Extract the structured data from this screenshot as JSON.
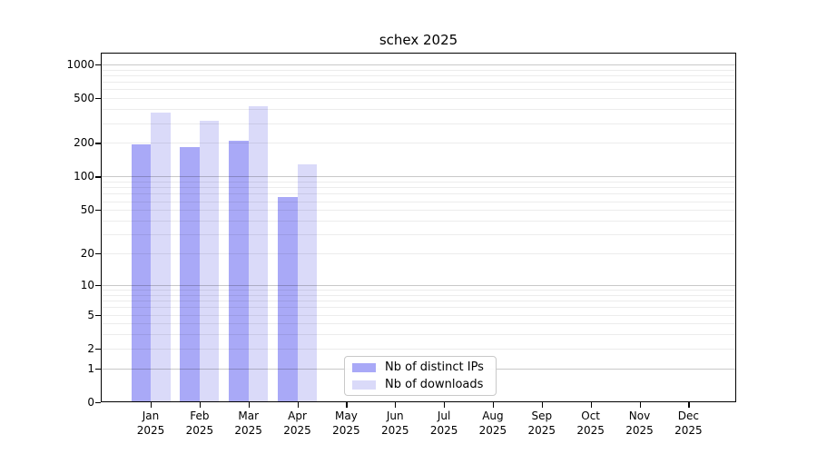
{
  "figure": {
    "title": "schex 2025",
    "background": "#ffffff"
  },
  "chart_data": {
    "type": "bar",
    "title": "schex 2025",
    "scale": "log1p",
    "grid": "horizontal major+minor, drawn over bars",
    "legend_position": "bottom-center-inside",
    "year": "2025",
    "categories": [
      "Jan",
      "Feb",
      "Mar",
      "Apr",
      "May",
      "Jun",
      "Jul",
      "Aug",
      "Sep",
      "Oct",
      "Nov",
      "Dec"
    ],
    "series": [
      {
        "name": "Nb of distinct IPs",
        "color": "#a9a9f7",
        "values": [
          196,
          184,
          209,
          66,
          0,
          0,
          0,
          0,
          0,
          0,
          0,
          0
        ]
      },
      {
        "name": "Nb of downloads",
        "color": "#dadaf9",
        "values": [
          373,
          315,
          425,
          129,
          0,
          0,
          0,
          0,
          0,
          0,
          0,
          0
        ]
      }
    ],
    "y_ticks": [
      1000,
      500,
      200,
      100,
      50,
      20,
      10,
      5,
      2,
      1,
      0
    ],
    "ylim": [
      0,
      1370
    ],
    "xlabel": "",
    "ylabel": ""
  }
}
